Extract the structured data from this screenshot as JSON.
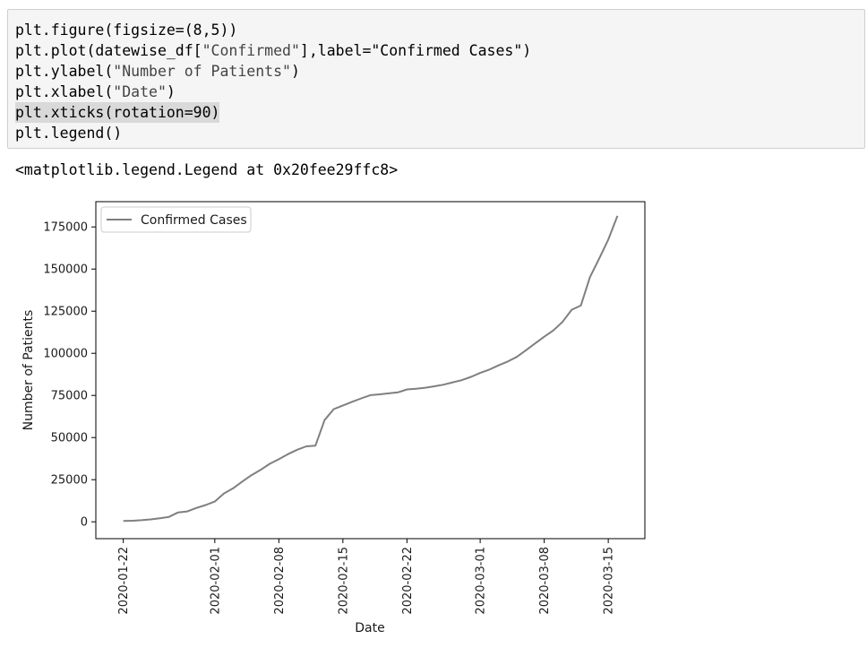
{
  "code_cell": {
    "lines": [
      {
        "pre": "plt.figure(figsize=(8,5))",
        "str": "",
        "post": ""
      },
      {
        "pre": "plt.plot(datewise_df[",
        "str": "\"Confirmed\"",
        "post": "],label=\"Confirmed Cases\")"
      },
      {
        "pre": "plt.ylabel(",
        "str": "\"Number of Patients\"",
        "post": ")"
      },
      {
        "pre": "plt.xlabel(",
        "str": "\"Date\"",
        "post": ")"
      },
      {
        "pre": "plt.xticks(rotation=90)",
        "str": "",
        "post": ""
      },
      {
        "pre": "plt.legend()",
        "str": "",
        "post": ""
      }
    ]
  },
  "output_text": "<matplotlib.legend.Legend at 0x20fee29ffc8>",
  "chart_data": {
    "type": "line",
    "xlabel": "Date",
    "ylabel": "Number of Patients",
    "x_ticks": [
      "2020-01-22",
      "2020-02-01",
      "2020-02-08",
      "2020-02-15",
      "2020-02-22",
      "2020-03-01",
      "2020-03-08",
      "2020-03-15"
    ],
    "y_ticks": [
      0,
      25000,
      50000,
      75000,
      100000,
      125000,
      150000,
      175000
    ],
    "ylim": [
      -10000,
      190000
    ],
    "xlim": [
      "2020-01-19",
      "2020-03-19"
    ],
    "legend": {
      "position": "upper left",
      "entries": [
        "Confirmed Cases"
      ]
    },
    "line_color": "#7f7f7f",
    "series": [
      {
        "name": "Confirmed Cases",
        "x": [
          "2020-01-22",
          "2020-01-23",
          "2020-01-24",
          "2020-01-25",
          "2020-01-26",
          "2020-01-27",
          "2020-01-28",
          "2020-01-29",
          "2020-01-30",
          "2020-01-31",
          "2020-02-01",
          "2020-02-02",
          "2020-02-03",
          "2020-02-04",
          "2020-02-05",
          "2020-02-06",
          "2020-02-07",
          "2020-02-08",
          "2020-02-09",
          "2020-02-10",
          "2020-02-11",
          "2020-02-12",
          "2020-02-13",
          "2020-02-14",
          "2020-02-15",
          "2020-02-16",
          "2020-02-17",
          "2020-02-18",
          "2020-02-19",
          "2020-02-20",
          "2020-02-21",
          "2020-02-22",
          "2020-02-23",
          "2020-02-24",
          "2020-02-25",
          "2020-02-26",
          "2020-02-27",
          "2020-02-28",
          "2020-02-29",
          "2020-03-01",
          "2020-03-02",
          "2020-03-03",
          "2020-03-04",
          "2020-03-05",
          "2020-03-06",
          "2020-03-07",
          "2020-03-08",
          "2020-03-09",
          "2020-03-10",
          "2020-03-11",
          "2020-03-12",
          "2020-03-13",
          "2020-03-14",
          "2020-03-15",
          "2020-03-16"
        ],
        "values": [
          555,
          654,
          941,
          1434,
          2118,
          2927,
          5578,
          6166,
          8234,
          9927,
          12038,
          16787,
          19881,
          23892,
          27635,
          30817,
          34391,
          37120,
          40150,
          42762,
          44802,
          45221,
          60368,
          66885,
          69030,
          71224,
          73258,
          75136,
          75639,
          76197,
          76819,
          78572,
          78958,
          79561,
          80406,
          81388,
          82746,
          84112,
          86011,
          88369,
          90306,
          92840,
          95120,
          97886,
          101801,
          105847,
          109821,
          113590,
          118620,
          125875,
          128352,
          145205,
          156101,
          167454,
          181574
        ]
      }
    ]
  }
}
